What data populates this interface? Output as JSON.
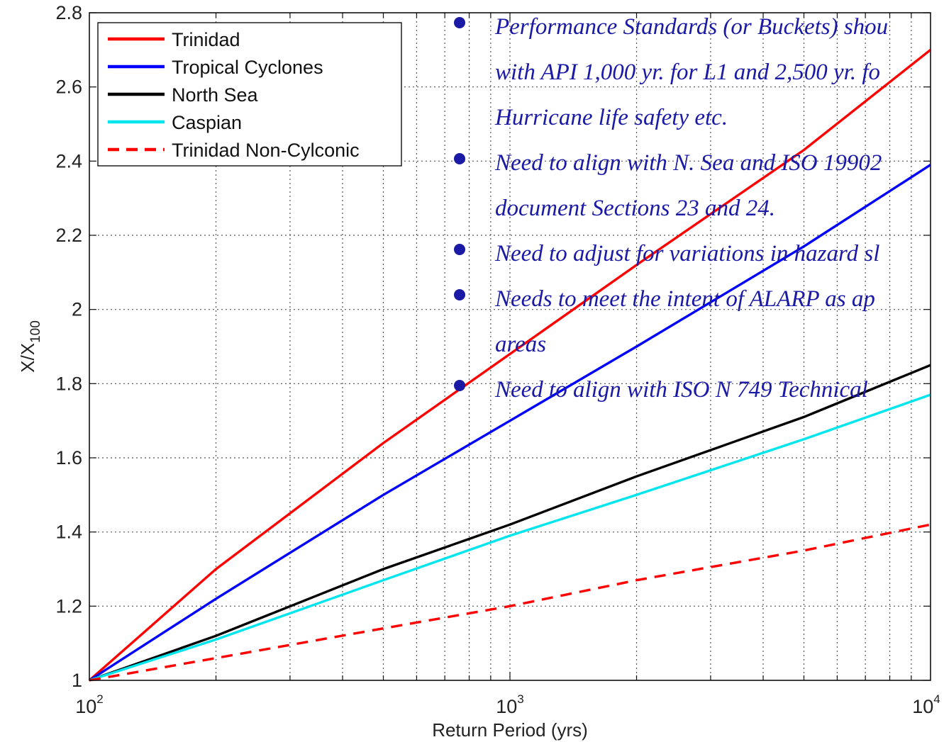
{
  "chart_data": {
    "type": "line",
    "title": "",
    "xlabel": "Return Period (yrs)",
    "ylabel": "X/X",
    "ylabel_sub": "100",
    "xscale": "log",
    "xlim": [
      100,
      10000
    ],
    "ylim": [
      1,
      2.8
    ],
    "grid": true,
    "legend_position": "top-left",
    "x_ticks": [
      {
        "base": "10",
        "exp": "2",
        "value": 100
      },
      {
        "base": "10",
        "exp": "3",
        "value": 1000
      },
      {
        "base": "10",
        "exp": "4",
        "value": 10000
      }
    ],
    "y_ticks": [
      "1",
      "1.2",
      "1.4",
      "1.6",
      "1.8",
      "2",
      "2.2",
      "2.4",
      "2.6",
      "2.8"
    ],
    "y_tick_values": [
      1,
      1.2,
      1.4,
      1.6,
      1.8,
      2,
      2.2,
      2.4,
      2.6,
      2.8
    ],
    "x": [
      100,
      200,
      500,
      1000,
      2000,
      5000,
      10000
    ],
    "series": [
      {
        "name": "Trinidad",
        "color": "#ff0000",
        "dash": false,
        "values": [
          1.0,
          1.3,
          1.64,
          1.88,
          2.12,
          2.43,
          2.7
        ]
      },
      {
        "name": "Tropical Cyclones",
        "color": "#0000ff",
        "dash": false,
        "values": [
          1.0,
          1.22,
          1.5,
          1.7,
          1.9,
          2.17,
          2.39
        ]
      },
      {
        "name": "North Sea",
        "color": "#000000",
        "dash": false,
        "values": [
          1.0,
          1.12,
          1.3,
          1.42,
          1.55,
          1.71,
          1.85
        ]
      },
      {
        "name": "Caspian",
        "color": "#00e5ee",
        "dash": false,
        "values": [
          1.0,
          1.11,
          1.27,
          1.39,
          1.5,
          1.65,
          1.77
        ]
      },
      {
        "name": "Trinidad Non-Cylconic",
        "color": "#ff0000",
        "dash": true,
        "values": [
          1.0,
          1.06,
          1.14,
          1.2,
          1.27,
          1.35,
          1.42
        ]
      }
    ]
  },
  "bullets": [
    {
      "text": "Performance Standards (or Buckets) shou",
      "bullet": true
    },
    {
      "text": "with API 1,000 yr. for L1 and 2,500 yr. fo",
      "bullet": false
    },
    {
      "text": "Hurricane  life safety etc.",
      "bullet": false
    },
    {
      "text": "Need to align with N. Sea and ISO 19902",
      "bullet": true
    },
    {
      "text": "document Sections 23 and 24.",
      "bullet": false
    },
    {
      "text": "Need to adjust for variations in hazard sl",
      "bullet": true
    },
    {
      "text": "Needs to meet the intent of ALARP as ap",
      "bullet": true
    },
    {
      "text": "areas",
      "bullet": false
    },
    {
      "text": "Need to align with ISO N 749 Technical",
      "bullet": true
    }
  ]
}
